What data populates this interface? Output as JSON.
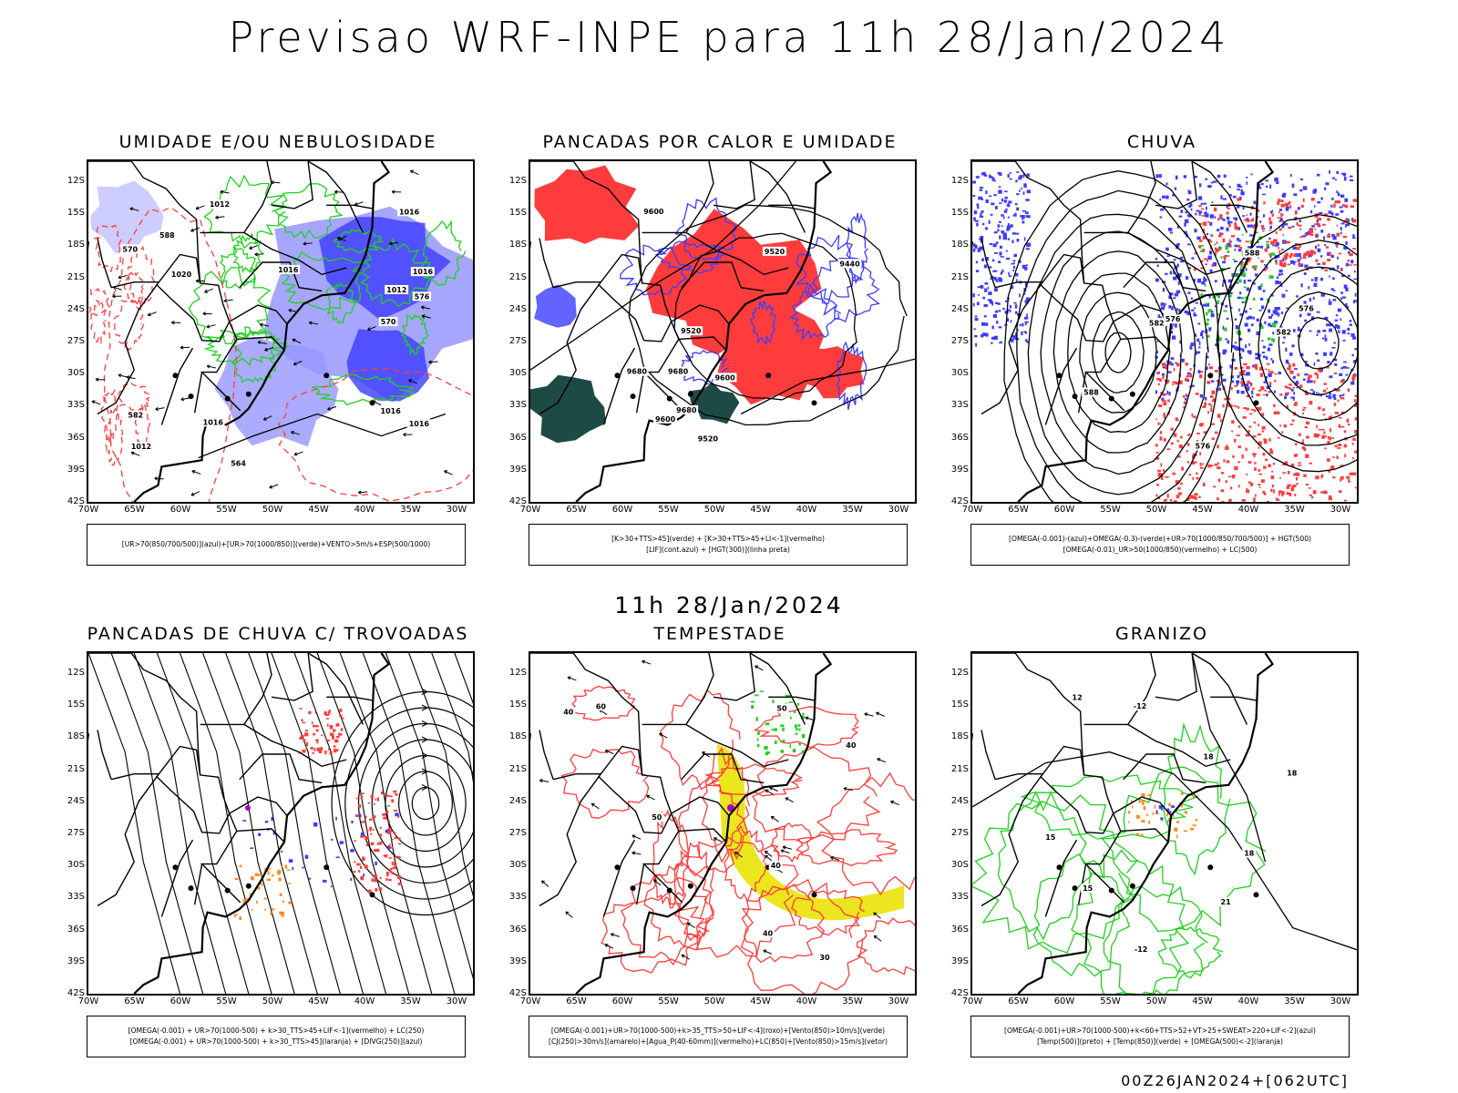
{
  "header": {
    "title": "Previsao WRF-INPE  para 11h 28/Jan/2024",
    "subtitle": "11h 28/Jan/2024",
    "footer": "00Z26JAN2024+[062UTC]"
  },
  "axes": {
    "lat_labels": [
      "12S",
      "15S",
      "18S",
      "21S",
      "24S",
      "27S",
      "30S",
      "33S",
      "36S",
      "39S",
      "42S"
    ],
    "lon_labels": [
      "70W",
      "65W",
      "60W",
      "55W",
      "50W",
      "45W",
      "40W",
      "35W",
      "30W"
    ]
  },
  "colors": {
    "red": "#ff3c3c",
    "blue": "#3c3cff",
    "green": "#1ed21e",
    "lavender": "#9696ff",
    "darkteal": "#1e4a46",
    "yellow": "#ebe61e",
    "orange": "#ff8c1e",
    "purple": "#a000c8",
    "black": "#000000"
  },
  "panels": [
    {
      "title": "UMIDADE E/OU NEBULOSIDADE",
      "legend": [
        "[UR>70(850/700/500)](azul)+[UR>70(1000/850)](verde)+VENTO>5m/s+ESP(500/1000)"
      ],
      "labels": [
        "1016",
        "1016",
        "1016",
        "1016",
        "1012",
        "1012",
        "1012",
        "1016",
        "1016",
        "1020",
        "576",
        "570",
        "570",
        "564",
        "582",
        "588"
      ]
    },
    {
      "title": "PANCADAS POR CALOR E UMIDADE",
      "legend": [
        "[K>30+TTS>45](verde) + [K>30+TTS>45+LI<-1](vermelho)",
        "[LIF](cont.azul) + [HGT(300)](linha preta)"
      ],
      "labels": [
        "9680",
        "9600",
        "9680",
        "9520",
        "9600",
        "9440",
        "9600",
        "9680",
        "9520",
        "9520"
      ]
    },
    {
      "title": "CHUVA",
      "legend": [
        "[OMEGA(-0.001)-(azul)+OMEGA(-0.3)-(verde)+UR>70(1000/850/700/500)] + HGT(500)",
        "[OMEGA(-0.01)_UR>50(1000/850)(vermelho) + LC(500)"
      ],
      "labels": [
        "582",
        "576",
        "576",
        "588",
        "576",
        "582",
        "588"
      ]
    },
    {
      "title": "PANCADAS DE CHUVA C/ TROVOADAS",
      "legend": [
        "[OMEGA(-0.001) + UR>70(1000-500) + k>30_TTS>45+LIF<-1](vermelho) + LC(250)",
        "[OMEGA(-0.001) + UR>70(1000-500) + k>30_TTS>45](laranja) + [DIVG(250)](azul)"
      ],
      "labels": []
    },
    {
      "title": "TEMPESTADE",
      "legend": [
        "[OMEGA(-0.001)+UR>70(1000-500)+k>35_TTS>50+LIF<-4](roxo)+[Vento(850)>10m/s](verde)",
        "[CJ(250)>30m/s](amarelo)+[Agua_P(40-60mm)](vermelho)+LC(850)+[Vento(850)>15m/s](vetor)"
      ],
      "labels": [
        "40",
        "50",
        "60",
        "40",
        "30",
        "40",
        "50",
        "40"
      ]
    },
    {
      "title": "GRANIZO",
      "legend": [
        "[OMEGA(-0.001)+UR>70(1000-500)+k<60+TTS>52+VT>25+SWEAT>220+LIF<-2](azul)",
        "[Temp(500)](preto) + [Temp(850)](verde) + [OMEGA(500)<-2](laranja)"
      ],
      "labels": [
        "-12",
        "18",
        "-12",
        "18",
        "15",
        "12",
        "15",
        "18",
        "21"
      ]
    }
  ]
}
